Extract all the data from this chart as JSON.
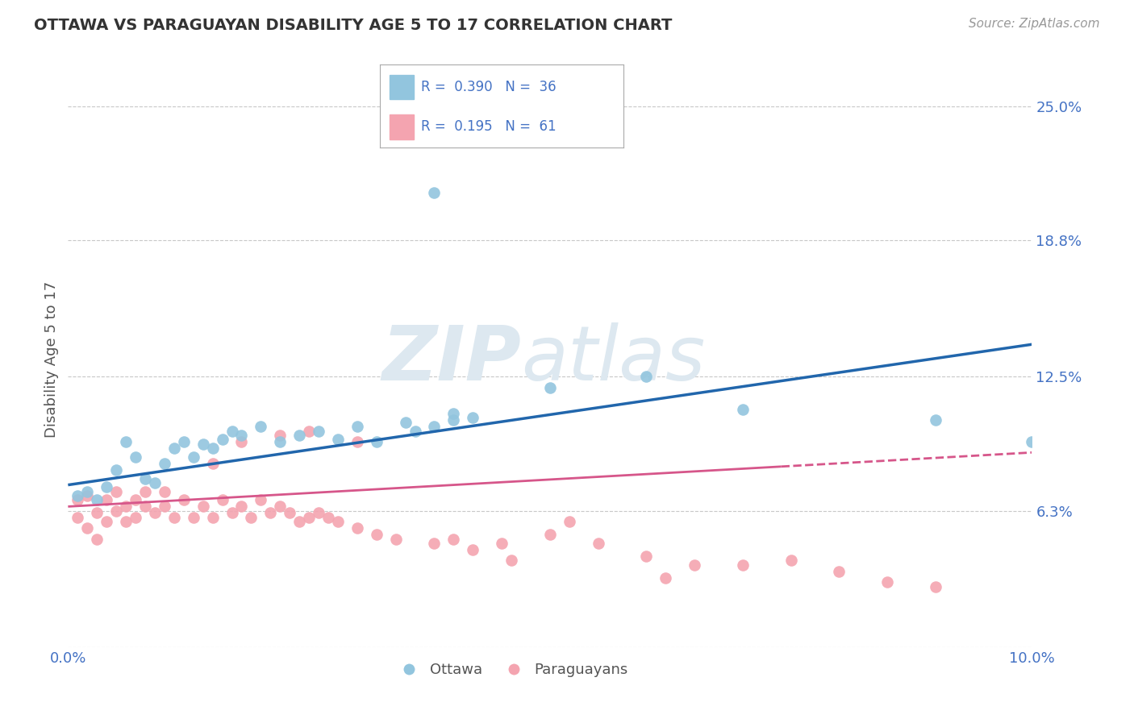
{
  "title": "OTTAWA VS PARAGUAYAN DISABILITY AGE 5 TO 17 CORRELATION CHART",
  "source": "Source: ZipAtlas.com",
  "ylabel": "Disability Age 5 to 17",
  "xlim": [
    0.0,
    0.1
  ],
  "ylim": [
    0.0,
    0.266
  ],
  "yticks": [
    0.0,
    0.063,
    0.125,
    0.188,
    0.25
  ],
  "ytick_labels": [
    "",
    "6.3%",
    "12.5%",
    "18.8%",
    "25.0%"
  ],
  "xticks": [
    0.0,
    0.025,
    0.05,
    0.075,
    0.1
  ],
  "xtick_labels": [
    "0.0%",
    "",
    "",
    "",
    "10.0%"
  ],
  "ottawa_color": "#92c5de",
  "paraguayan_color": "#f4a4b0",
  "trend_ottawa_color": "#2166ac",
  "trend_paraguayan_color": "#d6568a",
  "background_color": "#ffffff",
  "grid_color": "#c8c8c8",
  "watermark_color": "#dde8f0",
  "ottawa_x": [
    0.001,
    0.002,
    0.003,
    0.004,
    0.005,
    0.006,
    0.007,
    0.008,
    0.009,
    0.01,
    0.011,
    0.012,
    0.013,
    0.014,
    0.015,
    0.016,
    0.017,
    0.018,
    0.02,
    0.022,
    0.024,
    0.026,
    0.028,
    0.03,
    0.035,
    0.04,
    0.05,
    0.06,
    0.07,
    0.04,
    0.038,
    0.042,
    0.036,
    0.032,
    0.09,
    0.1
  ],
  "ottawa_y": [
    0.07,
    0.072,
    0.068,
    0.074,
    0.082,
    0.095,
    0.088,
    0.078,
    0.076,
    0.085,
    0.092,
    0.095,
    0.088,
    0.094,
    0.092,
    0.096,
    0.1,
    0.098,
    0.102,
    0.095,
    0.098,
    0.1,
    0.096,
    0.102,
    0.104,
    0.105,
    0.12,
    0.125,
    0.11,
    0.108,
    0.102,
    0.106,
    0.1,
    0.095,
    0.105,
    0.095
  ],
  "ottawa_outlier_x": [
    0.038
  ],
  "ottawa_outlier_y": [
    0.21
  ],
  "paraguayan_x": [
    0.001,
    0.001,
    0.002,
    0.002,
    0.003,
    0.003,
    0.004,
    0.004,
    0.005,
    0.005,
    0.006,
    0.006,
    0.007,
    0.007,
    0.008,
    0.008,
    0.009,
    0.01,
    0.01,
    0.011,
    0.012,
    0.013,
    0.014,
    0.015,
    0.016,
    0.017,
    0.018,
    0.019,
    0.02,
    0.021,
    0.022,
    0.023,
    0.024,
    0.025,
    0.026,
    0.027,
    0.028,
    0.03,
    0.032,
    0.034,
    0.04,
    0.045,
    0.05,
    0.052,
    0.055,
    0.06,
    0.065,
    0.07,
    0.075,
    0.08,
    0.085,
    0.09,
    0.038,
    0.042,
    0.046,
    0.062,
    0.015,
    0.018,
    0.022,
    0.025,
    0.03
  ],
  "paraguayan_y": [
    0.06,
    0.068,
    0.055,
    0.07,
    0.05,
    0.062,
    0.058,
    0.068,
    0.063,
    0.072,
    0.058,
    0.065,
    0.06,
    0.068,
    0.065,
    0.072,
    0.062,
    0.065,
    0.072,
    0.06,
    0.068,
    0.06,
    0.065,
    0.06,
    0.068,
    0.062,
    0.065,
    0.06,
    0.068,
    0.062,
    0.065,
    0.062,
    0.058,
    0.06,
    0.062,
    0.06,
    0.058,
    0.055,
    0.052,
    0.05,
    0.05,
    0.048,
    0.052,
    0.058,
    0.048,
    0.042,
    0.038,
    0.038,
    0.04,
    0.035,
    0.03,
    0.028,
    0.048,
    0.045,
    0.04,
    0.032,
    0.085,
    0.095,
    0.098,
    0.1,
    0.095
  ],
  "trend_ottawa_x0": 0.0,
  "trend_ottawa_y0": 0.075,
  "trend_ottawa_x1": 0.1,
  "trend_ottawa_y1": 0.14,
  "trend_par_x0": 0.0,
  "trend_par_y0": 0.065,
  "trend_par_x1": 0.1,
  "trend_par_y1": 0.09,
  "trend_par_dash_start": 0.074
}
